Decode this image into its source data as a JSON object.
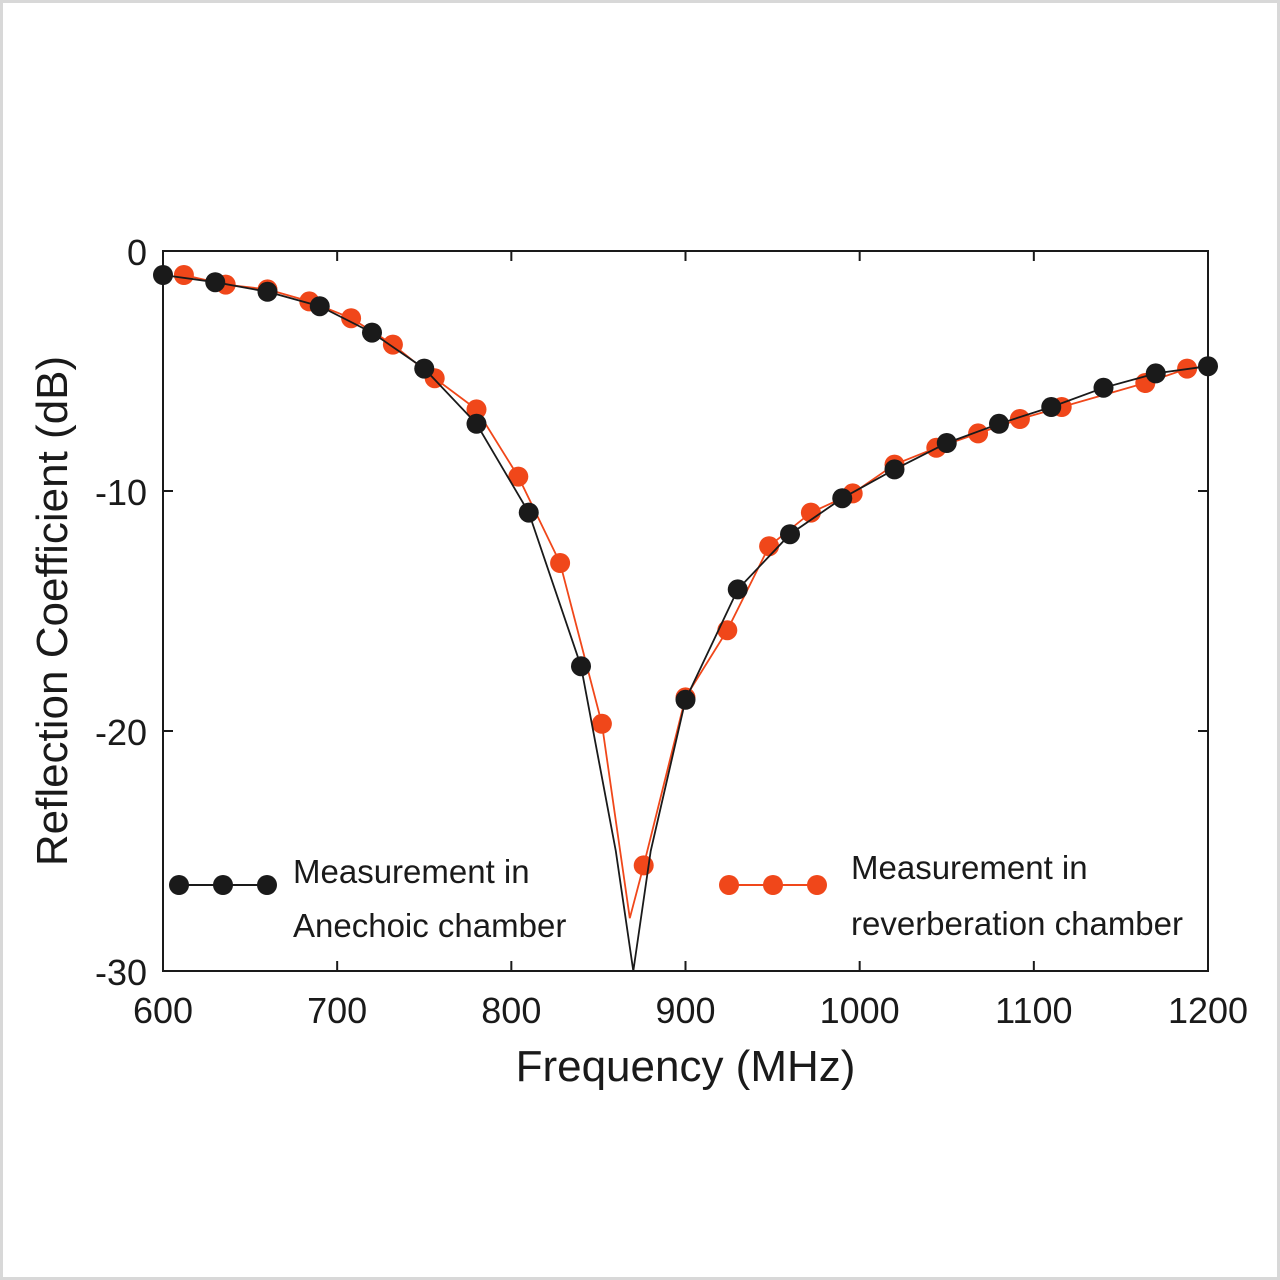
{
  "chart_data": {
    "type": "line",
    "title": "",
    "xlabel": "Frequency (MHz)",
    "ylabel": "Reflection Coefficient (dB)",
    "xlim": [
      600,
      1200
    ],
    "ylim": [
      -30,
      0
    ],
    "x_ticks": [
      "600",
      "700",
      "800",
      "900",
      "1000",
      "1100",
      "1200"
    ],
    "y_ticks": [
      "0",
      "-10",
      "-20",
      "-30"
    ],
    "grid": false,
    "legend_position": "bottom",
    "series": [
      {
        "name": "Measurement in Anechoic chamber",
        "legend_lines": [
          "Measurement in",
          "Anechoic chamber"
        ],
        "color": "#1a1a1a",
        "minimum": {
          "x": 870,
          "y": -30.0
        },
        "curve": [
          [
            600,
            -1.0
          ],
          [
            630,
            -1.3
          ],
          [
            660,
            -1.7
          ],
          [
            690,
            -2.3
          ],
          [
            720,
            -3.4
          ],
          [
            750,
            -4.9
          ],
          [
            780,
            -7.2
          ],
          [
            810,
            -10.9
          ],
          [
            840,
            -17.3
          ],
          [
            860,
            -25.0
          ],
          [
            870,
            -30.0
          ],
          [
            880,
            -25.0
          ],
          [
            900,
            -18.7
          ],
          [
            930,
            -14.1
          ],
          [
            960,
            -11.8
          ],
          [
            990,
            -10.3
          ],
          [
            1020,
            -9.1
          ],
          [
            1050,
            -8.0
          ],
          [
            1080,
            -7.2
          ],
          [
            1110,
            -6.5
          ],
          [
            1140,
            -5.7
          ],
          [
            1170,
            -5.1
          ],
          [
            1200,
            -4.8
          ]
        ],
        "markers": [
          [
            600,
            -1.0
          ],
          [
            630,
            -1.3
          ],
          [
            660,
            -1.7
          ],
          [
            690,
            -2.3
          ],
          [
            720,
            -3.4
          ],
          [
            750,
            -4.9
          ],
          [
            780,
            -7.2
          ],
          [
            810,
            -10.9
          ],
          [
            840,
            -17.3
          ],
          [
            900,
            -18.7
          ],
          [
            930,
            -14.1
          ],
          [
            960,
            -11.8
          ],
          [
            990,
            -10.3
          ],
          [
            1020,
            -9.1
          ],
          [
            1050,
            -8.0
          ],
          [
            1080,
            -7.2
          ],
          [
            1110,
            -6.5
          ],
          [
            1140,
            -5.7
          ],
          [
            1170,
            -5.1
          ],
          [
            1200,
            -4.8
          ]
        ]
      },
      {
        "name": "Measurement in reverberation chamber",
        "legend_lines": [
          "Measurement in",
          "reverberation chamber"
        ],
        "color": "#f0471a",
        "minimum": {
          "x": 868,
          "y": -27.8
        },
        "curve": [
          [
            612,
            -1.0
          ],
          [
            636,
            -1.4
          ],
          [
            660,
            -1.6
          ],
          [
            684,
            -2.1
          ],
          [
            708,
            -2.8
          ],
          [
            732,
            -3.9
          ],
          [
            756,
            -5.3
          ],
          [
            780,
            -6.6
          ],
          [
            804,
            -9.4
          ],
          [
            828,
            -13.0
          ],
          [
            852,
            -19.7
          ],
          [
            868,
            -27.8
          ],
          [
            876,
            -25.6
          ],
          [
            900,
            -18.6
          ],
          [
            924,
            -15.8
          ],
          [
            948,
            -12.3
          ],
          [
            972,
            -10.9
          ],
          [
            996,
            -10.1
          ],
          [
            1020,
            -8.9
          ],
          [
            1044,
            -8.2
          ],
          [
            1068,
            -7.6
          ],
          [
            1092,
            -7.0
          ],
          [
            1116,
            -6.5
          ],
          [
            1164,
            -5.5
          ],
          [
            1188,
            -4.9
          ],
          [
            1200,
            -4.8
          ]
        ],
        "markers": [
          [
            612,
            -1.0
          ],
          [
            636,
            -1.4
          ],
          [
            660,
            -1.6
          ],
          [
            684,
            -2.1
          ],
          [
            708,
            -2.8
          ],
          [
            732,
            -3.9
          ],
          [
            756,
            -5.3
          ],
          [
            780,
            -6.6
          ],
          [
            804,
            -9.4
          ],
          [
            828,
            -13.0
          ],
          [
            852,
            -19.7
          ],
          [
            876,
            -25.6
          ],
          [
            900,
            -18.6
          ],
          [
            924,
            -15.8
          ],
          [
            948,
            -12.3
          ],
          [
            972,
            -10.9
          ],
          [
            996,
            -10.1
          ],
          [
            1020,
            -8.9
          ],
          [
            1044,
            -8.2
          ],
          [
            1068,
            -7.6
          ],
          [
            1092,
            -7.0
          ],
          [
            1116,
            -6.5
          ],
          [
            1164,
            -5.5
          ],
          [
            1188,
            -4.9
          ]
        ]
      }
    ]
  }
}
